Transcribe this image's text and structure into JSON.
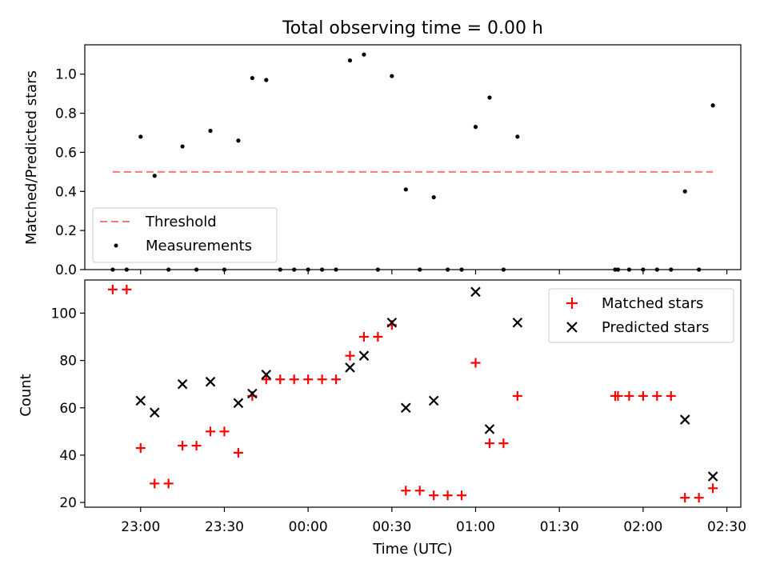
{
  "chart_data": [
    {
      "type": "scatter",
      "title": "Total observing time = 0.00 h",
      "xlabel": "",
      "ylabel": "Matched/Predicted stars",
      "x_ticks": [
        "23:00",
        "23:30",
        "00:00",
        "00:30",
        "01:00",
        "01:30",
        "02:00",
        "02:30"
      ],
      "xlim": [
        "22:40",
        "02:35"
      ],
      "ylim": [
        0,
        1.15
      ],
      "y_ticks": [
        "0.0",
        "0.2",
        "0.4",
        "0.6",
        "0.8",
        "1.0"
      ],
      "legend_position": "lower-left",
      "threshold": {
        "name": "Threshold",
        "value": 0.5,
        "x_start": "22:50",
        "x_end": "02:25",
        "color": "#f87878",
        "style": "dashed"
      },
      "series": [
        {
          "name": "Measurements",
          "color": "#000000",
          "marker": "dot",
          "points": [
            [
              "22:50",
              0.0
            ],
            [
              "22:55",
              0.0
            ],
            [
              "23:00",
              0.68
            ],
            [
              "23:05",
              0.48
            ],
            [
              "23:10",
              0.0
            ],
            [
              "23:15",
              0.63
            ],
            [
              "23:20",
              0.0
            ],
            [
              "23:25",
              0.71
            ],
            [
              "23:30",
              0.0
            ],
            [
              "23:35",
              0.66
            ],
            [
              "23:40",
              0.98
            ],
            [
              "23:45",
              0.97
            ],
            [
              "23:50",
              0.0
            ],
            [
              "23:55",
              0.0
            ],
            [
              "00:00",
              0.0
            ],
            [
              "00:05",
              0.0
            ],
            [
              "00:10",
              0.0
            ],
            [
              "00:15",
              1.07
            ],
            [
              "00:20",
              1.1
            ],
            [
              "00:25",
              0.0
            ],
            [
              "00:30",
              0.99
            ],
            [
              "00:35",
              0.41
            ],
            [
              "00:40",
              0.0
            ],
            [
              "00:45",
              0.37
            ],
            [
              "00:50",
              0.0
            ],
            [
              "00:55",
              0.0
            ],
            [
              "01:00",
              0.73
            ],
            [
              "01:05",
              0.88
            ],
            [
              "01:10",
              0.0
            ],
            [
              "01:15",
              0.68
            ],
            [
              "01:50",
              0.0
            ],
            [
              "01:51",
              0.0
            ],
            [
              "01:55",
              0.0
            ],
            [
              "02:00",
              0.0
            ],
            [
              "02:05",
              0.0
            ],
            [
              "02:10",
              0.0
            ],
            [
              "02:15",
              0.4
            ],
            [
              "02:20",
              0.0
            ],
            [
              "02:25",
              0.84
            ]
          ]
        }
      ]
    },
    {
      "type": "scatter",
      "title": "",
      "xlabel": "Time (UTC)",
      "ylabel": "Count",
      "x_ticks": [
        "23:00",
        "23:30",
        "00:00",
        "00:30",
        "01:00",
        "01:30",
        "02:00",
        "02:30"
      ],
      "xlim": [
        "22:40",
        "02:35"
      ],
      "ylim": [
        18,
        114
      ],
      "y_ticks": [
        "20",
        "40",
        "60",
        "80",
        "100"
      ],
      "legend_position": "upper-right",
      "series": [
        {
          "name": "Matched stars",
          "color": "#ff0000",
          "marker": "plus",
          "points": [
            [
              "22:50",
              110
            ],
            [
              "22:55",
              110
            ],
            [
              "23:00",
              43
            ],
            [
              "23:05",
              28
            ],
            [
              "23:10",
              28
            ],
            [
              "23:15",
              44
            ],
            [
              "23:20",
              44
            ],
            [
              "23:25",
              50
            ],
            [
              "23:30",
              50
            ],
            [
              "23:35",
              41
            ],
            [
              "23:40",
              65
            ],
            [
              "23:45",
              72
            ],
            [
              "23:50",
              72
            ],
            [
              "23:55",
              72
            ],
            [
              "00:00",
              72
            ],
            [
              "00:05",
              72
            ],
            [
              "00:10",
              72
            ],
            [
              "00:15",
              82
            ],
            [
              "00:20",
              90
            ],
            [
              "00:25",
              90
            ],
            [
              "00:30",
              95
            ],
            [
              "00:35",
              25
            ],
            [
              "00:40",
              25
            ],
            [
              "00:45",
              23
            ],
            [
              "00:50",
              23
            ],
            [
              "00:55",
              23
            ],
            [
              "01:00",
              79
            ],
            [
              "01:05",
              45
            ],
            [
              "01:10",
              45
            ],
            [
              "01:15",
              65
            ],
            [
              "01:50",
              65
            ],
            [
              "01:51",
              65
            ],
            [
              "01:55",
              65
            ],
            [
              "02:00",
              65
            ],
            [
              "02:05",
              65
            ],
            [
              "02:10",
              65
            ],
            [
              "02:15",
              22
            ],
            [
              "02:20",
              22
            ],
            [
              "02:25",
              26
            ]
          ]
        },
        {
          "name": "Predicted stars",
          "color": "#000000",
          "marker": "x",
          "points": [
            [
              "23:00",
              63
            ],
            [
              "23:05",
              58
            ],
            [
              "23:15",
              70
            ],
            [
              "23:25",
              71
            ],
            [
              "23:35",
              62
            ],
            [
              "23:40",
              66
            ],
            [
              "23:45",
              74
            ],
            [
              "00:15",
              77
            ],
            [
              "00:20",
              82
            ],
            [
              "00:30",
              96
            ],
            [
              "00:35",
              60
            ],
            [
              "00:45",
              63
            ],
            [
              "01:00",
              109
            ],
            [
              "01:05",
              51
            ],
            [
              "01:15",
              96
            ],
            [
              "02:15",
              55
            ],
            [
              "02:25",
              31
            ]
          ]
        }
      ]
    }
  ]
}
